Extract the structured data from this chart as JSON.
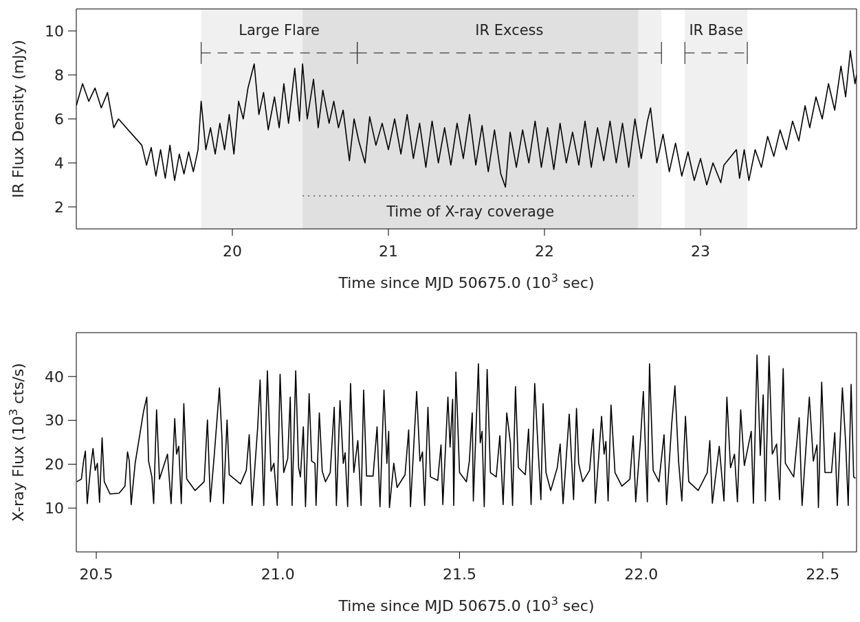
{
  "chart_data": [
    {
      "type": "line",
      "xlabel": "Time since MJD 50675.0 (10$^{3}$ sec)",
      "ylabel": "IR Flux Density (mJy)",
      "xlim": [
        19,
        24
      ],
      "xticks": [
        20,
        21,
        22,
        23
      ],
      "ylim": [
        1,
        11
      ],
      "yticks": [
        2,
        4,
        6,
        8,
        10
      ],
      "bands": [
        {
          "axis": "x",
          "from": 19.8,
          "to": 20.8,
          "label": "Large Flare",
          "color": "#f0f0f0"
        },
        {
          "axis": "x",
          "from": 20.8,
          "to": 22.75,
          "label": "IR Excess",
          "color": "#f0f0f0"
        },
        {
          "axis": "x",
          "from": 22.9,
          "to": 23.3,
          "label": "IR Base",
          "color": "#f0f0f0"
        },
        {
          "axis": "x",
          "from": 20.45,
          "to": 22.6,
          "label": "Time of X-ray coverage",
          "color": "#e0e0e0"
        }
      ],
      "x": [
        19.0,
        19.04,
        19.08,
        19.12,
        19.16,
        19.2,
        19.24,
        19.27,
        19.42,
        19.45,
        19.48,
        19.51,
        19.54,
        19.57,
        19.6,
        19.63,
        19.66,
        19.69,
        19.72,
        19.75,
        19.78,
        19.8,
        19.83,
        19.86,
        19.89,
        19.92,
        19.95,
        19.98,
        20.01,
        20.04,
        20.07,
        20.1,
        20.14,
        20.17,
        20.2,
        20.23,
        20.27,
        20.3,
        20.33,
        20.36,
        20.4,
        20.43,
        20.45,
        20.48,
        20.52,
        20.55,
        20.58,
        20.62,
        20.65,
        20.68,
        20.71,
        20.75,
        20.78,
        20.81,
        20.85,
        20.88,
        20.92,
        20.96,
        21.0,
        21.04,
        21.08,
        21.12,
        21.16,
        21.2,
        21.24,
        21.28,
        21.32,
        21.36,
        21.4,
        21.44,
        21.48,
        21.52,
        21.56,
        21.6,
        21.64,
        21.68,
        21.72,
        21.75,
        21.78,
        21.82,
        21.86,
        21.9,
        21.94,
        21.98,
        22.02,
        22.06,
        22.1,
        22.14,
        22.18,
        22.22,
        22.26,
        22.3,
        22.34,
        22.38,
        22.42,
        22.46,
        22.5,
        22.54,
        22.58,
        22.62,
        22.66,
        22.68,
        22.72,
        22.76,
        22.8,
        22.84,
        22.88,
        22.92,
        22.96,
        23.0,
        23.04,
        23.08,
        23.13,
        23.15,
        23.23,
        23.25,
        23.28,
        23.31,
        23.35,
        23.39,
        23.43,
        23.47,
        23.51,
        23.55,
        23.59,
        23.63,
        23.67,
        23.7,
        23.74,
        23.78,
        23.82,
        23.86,
        23.9,
        23.93,
        23.96,
        23.99,
        24.0
      ],
      "series": [
        {
          "color": "#000000",
          "values": [
            6.6,
            7.6,
            6.8,
            7.4,
            6.5,
            7.2,
            5.6,
            6.0,
            4.8,
            3.9,
            4.7,
            3.4,
            4.6,
            3.3,
            4.8,
            3.2,
            4.4,
            3.5,
            4.5,
            3.6,
            4.6,
            6.8,
            4.6,
            5.6,
            4.4,
            5.8,
            4.6,
            6.2,
            4.4,
            6.8,
            6.0,
            7.4,
            8.5,
            6.2,
            7.2,
            5.5,
            7.0,
            5.6,
            7.6,
            5.8,
            8.3,
            5.9,
            8.5,
            6.0,
            7.8,
            5.6,
            7.3,
            5.8,
            6.8,
            5.6,
            6.4,
            4.1,
            6.0,
            5.0,
            4.0,
            6.1,
            4.8,
            5.8,
            4.6,
            6.0,
            4.4,
            6.2,
            4.2,
            5.8,
            3.8,
            5.9,
            4.0,
            5.6,
            3.9,
            5.8,
            4.2,
            6.2,
            3.9,
            5.7,
            3.6,
            5.5,
            3.5,
            2.9,
            5.4,
            3.8,
            5.5,
            4.0,
            5.9,
            3.8,
            5.6,
            3.7,
            5.8,
            4.0,
            5.4,
            3.9,
            5.9,
            3.8,
            5.6,
            4.1,
            5.9,
            4.0,
            5.8,
            3.8,
            6.0,
            4.2,
            5.9,
            6.5,
            4.0,
            5.3,
            3.6,
            4.9,
            3.4,
            4.5,
            3.2,
            4.2,
            3.0,
            4.0,
            3.1,
            3.9,
            4.6,
            3.3,
            4.6,
            3.2,
            4.6,
            3.8,
            5.2,
            4.3,
            5.5,
            4.6,
            5.9,
            5.0,
            6.6,
            5.6,
            7.0,
            6.0,
            7.6,
            6.4,
            8.4,
            7.0,
            9.1,
            7.6,
            8.0
          ]
        }
      ]
    },
    {
      "type": "line",
      "xlabel": "Time since MJD 50675.0 (10$^{3}$ sec)",
      "ylabel": "X-ray Flux (10$^{3}$ cts/s)",
      "xlim": [
        20.445,
        22.593
      ],
      "xticks": [
        20.5,
        {
          "value": 21,
          "label": "21.0"
        },
        21.5,
        {
          "value": 22,
          "label": "22.0"
        },
        22.5
      ],
      "ylim": [
        0,
        50
      ],
      "yticks": [
        10,
        20,
        30,
        40
      ],
      "x": [
        20.446,
        20.459,
        20.465,
        20.47,
        20.475,
        20.484,
        20.491,
        20.497,
        20.503,
        20.509,
        20.516,
        20.522,
        20.538,
        20.563,
        20.579,
        20.586,
        20.591,
        20.596,
        20.607,
        20.63,
        20.639,
        20.644,
        20.653,
        20.658,
        20.666,
        20.674,
        20.696,
        20.706,
        20.716,
        20.721,
        20.727,
        20.734,
        20.741,
        20.749,
        20.772,
        20.797,
        20.806,
        20.814,
        20.825,
        20.839,
        20.846,
        20.85,
        20.86,
        20.866,
        20.897,
        20.913,
        20.921,
        20.929,
        20.944,
        20.951,
        20.961,
        20.971,
        20.981,
        20.989,
        20.998,
        21.006,
        21.016,
        21.027,
        21.034,
        21.039,
        21.049,
        21.057,
        21.062,
        21.07,
        21.076,
        21.086,
        21.093,
        21.102,
        21.105,
        21.114,
        21.122,
        21.131,
        21.144,
        21.155,
        21.161,
        21.171,
        21.18,
        21.185,
        21.192,
        21.2,
        21.209,
        21.22,
        21.229,
        21.236,
        21.244,
        21.262,
        21.273,
        21.281,
        21.292,
        21.3,
        21.305,
        21.307,
        21.319,
        21.328,
        21.35,
        21.36,
        21.365,
        21.382,
        21.391,
        21.398,
        21.404,
        21.413,
        21.42,
        21.44,
        21.449,
        21.454,
        21.468,
        21.474,
        21.481,
        21.484,
        21.49,
        21.5,
        21.519,
        21.527,
        21.535,
        21.538,
        21.552,
        21.557,
        21.562,
        21.568,
        21.576,
        21.585,
        21.601,
        21.611,
        21.62,
        21.63,
        21.64,
        21.646,
        21.654,
        21.662,
        21.681,
        21.69,
        21.697,
        21.707,
        21.716,
        21.724,
        21.73,
        21.738,
        21.751,
        21.769,
        21.777,
        21.785,
        21.802,
        21.814,
        21.822,
        21.828,
        21.839,
        21.858,
        21.868,
        21.874,
        21.891,
        21.898,
        21.903,
        21.909,
        21.917,
        21.928,
        21.947,
        21.969,
        21.978,
        21.985,
        21.998,
        22.006,
        22.017,
        22.023,
        22.033,
        22.049,
        22.063,
        22.07,
        22.084,
        22.093,
        22.103,
        22.112,
        22.122,
        22.131,
        22.157,
        22.182,
        22.189,
        22.196,
        22.215,
        22.228,
        22.236,
        22.246,
        22.257,
        22.265,
        22.274,
        22.284,
        22.303,
        22.309,
        22.319,
        22.328,
        22.336,
        22.342,
        22.352,
        22.361,
        22.373,
        22.381,
        22.391,
        22.397,
        22.42,
        22.435,
        22.443,
        22.463,
        22.474,
        22.484,
        22.488,
        22.497,
        22.506,
        22.524,
        22.533,
        22.54,
        22.554,
        22.563,
        22.57,
        22.578,
        22.585,
        22.59
      ],
      "series": [
        {
          "color": "#000000",
          "values": [
            16,
            16.6,
            20.7,
            23,
            11,
            19,
            23.6,
            18.6,
            20.2,
            11.3,
            26,
            16,
            13.2,
            13.4,
            15,
            22.8,
            20.7,
            10.8,
            20.2,
            32,
            35.3,
            20.7,
            17.1,
            11,
            32.4,
            16.6,
            22.3,
            11,
            30.4,
            22.3,
            24.1,
            11,
            33.8,
            16.6,
            14,
            16,
            30.1,
            11.4,
            22.3,
            37.4,
            26,
            11,
            30.1,
            17.6,
            15.5,
            18.6,
            26.7,
            10.6,
            28,
            39.2,
            10.6,
            41.3,
            18.4,
            20.2,
            10.6,
            40.5,
            18.1,
            21.3,
            35.3,
            10.6,
            41.3,
            19.2,
            17.1,
            28.5,
            10.3,
            36.1,
            20.7,
            20.2,
            10.6,
            31.7,
            18.4,
            16,
            18.1,
            33,
            10.6,
            34.5,
            20.2,
            22.6,
            10.3,
            38.4,
            18.1,
            25.4,
            10.6,
            36.9,
            17.3,
            17.3,
            28.5,
            10.3,
            36.9,
            20.2,
            27.5,
            10.1,
            20.2,
            14.7,
            17.6,
            27.8,
            10.3,
            36.6,
            20.7,
            22.8,
            10.6,
            33,
            17.1,
            16.3,
            24.4,
            10.8,
            35.3,
            23.9,
            34.8,
            10.6,
            41,
            18.1,
            16,
            20.7,
            31.7,
            11.6,
            42.9,
            24.9,
            27.5,
            10.3,
            41.6,
            18.1,
            17.1,
            26.5,
            10.8,
            31.7,
            24.9,
            10.6,
            37.7,
            19.2,
            17.6,
            28,
            10.8,
            38.4,
            23.9,
            11.9,
            33.8,
            18.1,
            14,
            19.2,
            24.6,
            11,
            31.4,
            11.9,
            32.7,
            20.2,
            16,
            18.6,
            28,
            11.1,
            30.9,
            22.3,
            25.2,
            11.6,
            33.5,
            18.1,
            15,
            16.6,
            26.5,
            11.4,
            25.4,
            36.6,
            11.4,
            42.9,
            18.6,
            16,
            26.7,
            10.8,
            29.1,
            37.9,
            20.7,
            11.6,
            30.9,
            16,
            14,
            18.1,
            25.4,
            11.1,
            24.1,
            11.6,
            35.3,
            19.2,
            22.3,
            11.4,
            32.4,
            19.7,
            27.5,
            11.1,
            44.9,
            22,
            35.8,
            11.6,
            44.7,
            22.3,
            24.6,
            11.9,
            41.8,
            20.2,
            17.1,
            30.6,
            10.6,
            35.3,
            20.7,
            24.4,
            10.1,
            38.7,
            18.1,
            18.1,
            27.2,
            10.6,
            37.4,
            24.9,
            10.6,
            38.2,
            17.1,
            16.8
          ]
        }
      ]
    }
  ]
}
